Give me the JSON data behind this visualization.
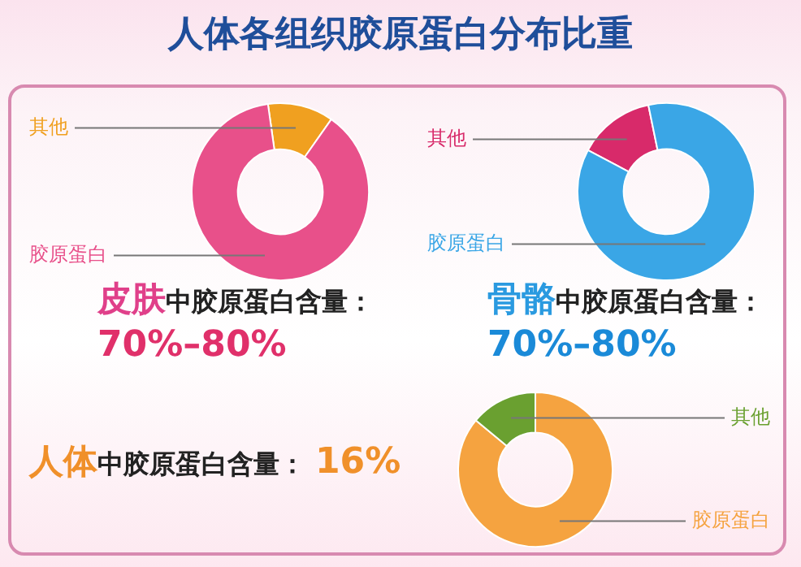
{
  "chart_data": [
    {
      "type": "donut",
      "title": "人体各组织胶原蛋白分布比重",
      "categories": [
        "其他",
        "胶原蛋白"
      ],
      "values": [
        12,
        88
      ],
      "colors": [
        "#f0a020",
        "#e8508a"
      ],
      "legend": false,
      "annotations": [
        "皮肤",
        "中胶原蛋白含量：",
        "70%–80%"
      ]
    },
    {
      "type": "donut",
      "categories": [
        "其他",
        "胶原蛋白"
      ],
      "values": [
        14,
        86
      ],
      "colors": [
        "#d82a6a",
        "#3aa6e6"
      ],
      "legend": false,
      "annotations": [
        "骨骼",
        "中胶原蛋白含量：",
        "70%–80%"
      ]
    },
    {
      "type": "donut",
      "categories": [
        "胶原蛋白",
        "其他"
      ],
      "values": [
        86,
        14
      ],
      "colors": [
        "#f5a340",
        "#6aa030"
      ],
      "legend": false,
      "annotations": [
        "人体",
        "中胶原蛋白含量：",
        "16%"
      ]
    }
  ]
}
